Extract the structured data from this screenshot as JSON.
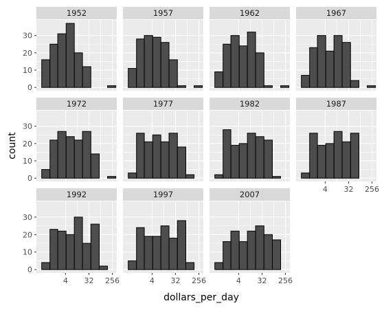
{
  "chart_data": {
    "type": "bar",
    "xlabel": "dollars_per_day",
    "ylabel": "count",
    "x_scale": "log2",
    "x_breaks": [
      4,
      32,
      256
    ],
    "x_break_labels": [
      "4",
      "32",
      "256"
    ],
    "x_range": [
      0.3,
      380
    ],
    "bin_edges": [
      0.48,
      1.0,
      2.0,
      4.2,
      8.7,
      18,
      38,
      80,
      167,
      349
    ],
    "y_breaks": [
      0,
      10,
      20,
      30
    ],
    "y_break_labels": [
      "0",
      "10",
      "20",
      "30"
    ],
    "ylim": [
      -1.9,
      39
    ],
    "panels": [
      {
        "label": "1952",
        "values": [
          16,
          25,
          31,
          37,
          20,
          12,
          0,
          0,
          1
        ]
      },
      {
        "label": "1957",
        "values": [
          11,
          28,
          30,
          29,
          26,
          16,
          1,
          0,
          1
        ]
      },
      {
        "label": "1962",
        "values": [
          9,
          25,
          30,
          24,
          32,
          20,
          1,
          0,
          1
        ]
      },
      {
        "label": "1967",
        "values": [
          7,
          23,
          30,
          21,
          30,
          26,
          4,
          0,
          1
        ]
      },
      {
        "label": "1972",
        "values": [
          5,
          22,
          27,
          24,
          22,
          27,
          14,
          0,
          1
        ]
      },
      {
        "label": "1977",
        "values": [
          3,
          26,
          21,
          25,
          21,
          26,
          18,
          2,
          0
        ]
      },
      {
        "label": "1982",
        "values": [
          2,
          28,
          19,
          20,
          26,
          24,
          22,
          1,
          0
        ]
      },
      {
        "label": "1987",
        "values": [
          3,
          26,
          19,
          20,
          27,
          21,
          26,
          0,
          0
        ]
      },
      {
        "label": "1992",
        "values": [
          4,
          23,
          22,
          20,
          30,
          15,
          26,
          2,
          0
        ]
      },
      {
        "label": "1997",
        "values": [
          5,
          24,
          19,
          19,
          25,
          18,
          28,
          4,
          0
        ]
      },
      {
        "label": "2007",
        "values": [
          4,
          16,
          22,
          16,
          22,
          25,
          20,
          17,
          0
        ]
      }
    ]
  }
}
